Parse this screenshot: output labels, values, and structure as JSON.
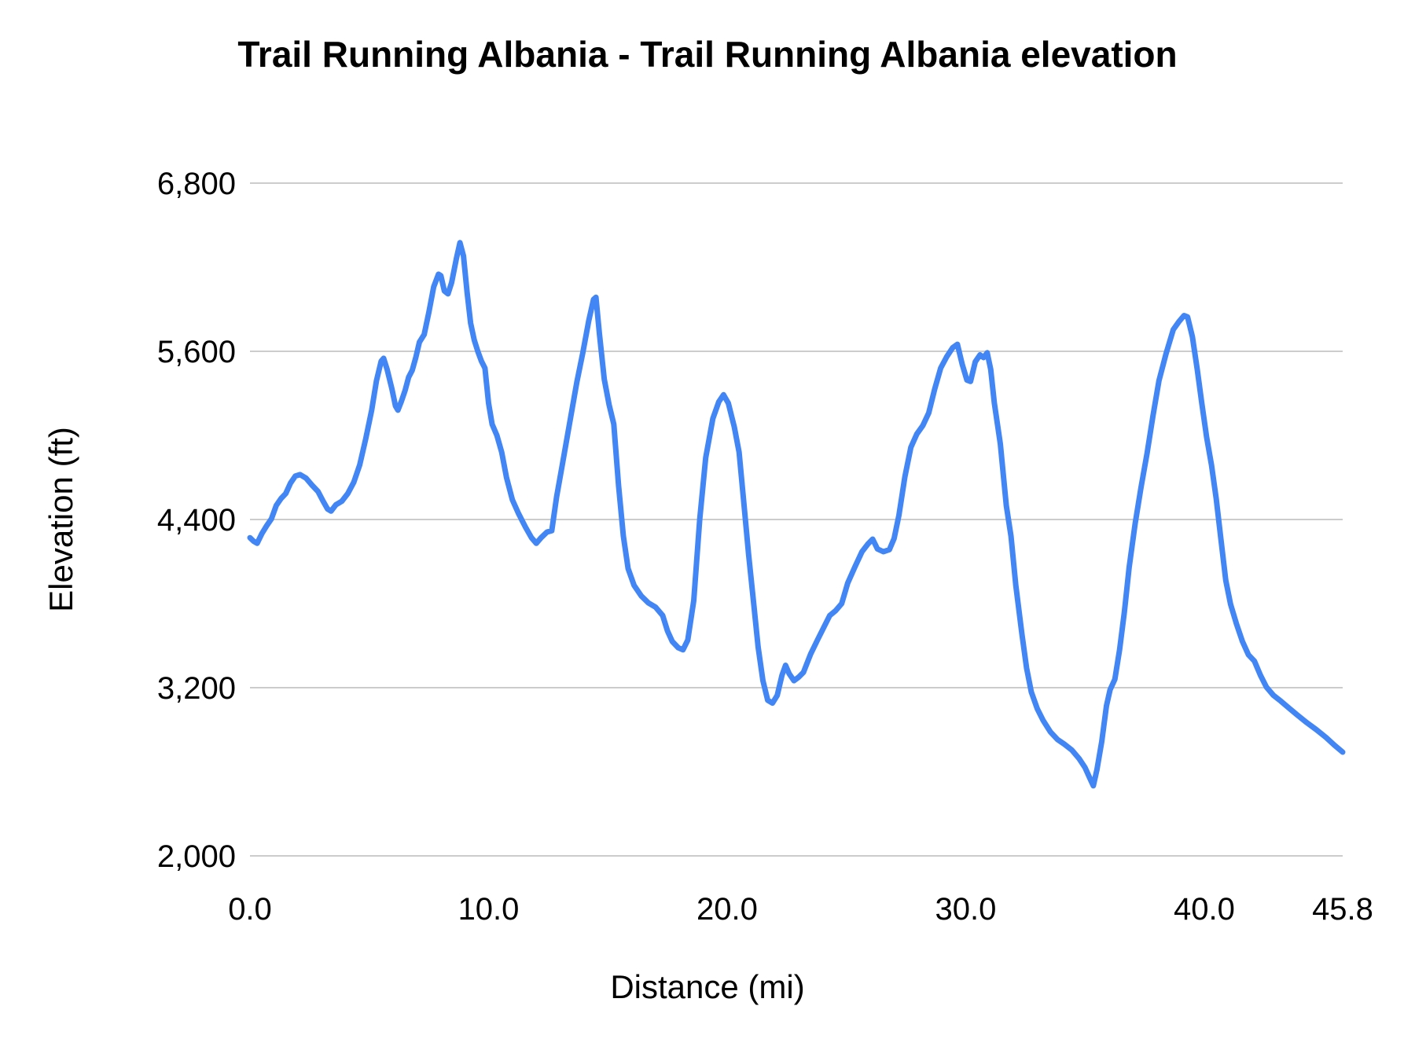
{
  "chart": {
    "line_color": "#4285f4",
    "gridline_color": "#cccccc",
    "text_color": "#000000",
    "background_color": "#ffffff"
  },
  "chart_data": {
    "type": "line",
    "title": "Trail Running Albania - Trail Running Albania elevation",
    "xlabel": "Distance (mi)",
    "ylabel": "Elevation (ft)",
    "xlim": [
      0,
      45.8
    ],
    "ylim": [
      2000,
      6800
    ],
    "grid": "horizontal",
    "legend": "none",
    "x_ticks": {
      "values": [
        0,
        10,
        20,
        30,
        40,
        45.8
      ],
      "labels": [
        "0.0",
        "10.0",
        "20.0",
        "30.0",
        "40.0",
        "45.8"
      ]
    },
    "y_ticks": {
      "values": [
        2000,
        3200,
        4400,
        5600,
        6800
      ],
      "labels": [
        "2,000",
        "3,200",
        "4,400",
        "5,600",
        "6,800"
      ]
    },
    "series": [
      {
        "name": "elevation",
        "points": [
          [
            0.0,
            4270
          ],
          [
            0.15,
            4245
          ],
          [
            0.3,
            4230
          ],
          [
            0.5,
            4300
          ],
          [
            0.7,
            4355
          ],
          [
            0.9,
            4405
          ],
          [
            1.1,
            4500
          ],
          [
            1.3,
            4550
          ],
          [
            1.5,
            4585
          ],
          [
            1.7,
            4660
          ],
          [
            1.9,
            4710
          ],
          [
            2.1,
            4720
          ],
          [
            2.35,
            4695
          ],
          [
            2.6,
            4645
          ],
          [
            2.85,
            4600
          ],
          [
            3.05,
            4535
          ],
          [
            3.25,
            4475
          ],
          [
            3.4,
            4460
          ],
          [
            3.6,
            4505
          ],
          [
            3.85,
            4530
          ],
          [
            4.1,
            4585
          ],
          [
            4.35,
            4665
          ],
          [
            4.6,
            4790
          ],
          [
            4.85,
            4975
          ],
          [
            5.1,
            5180
          ],
          [
            5.3,
            5390
          ],
          [
            5.5,
            5530
          ],
          [
            5.6,
            5550
          ],
          [
            5.75,
            5470
          ],
          [
            5.95,
            5330
          ],
          [
            6.1,
            5210
          ],
          [
            6.2,
            5180
          ],
          [
            6.35,
            5245
          ],
          [
            6.5,
            5320
          ],
          [
            6.65,
            5415
          ],
          [
            6.8,
            5465
          ],
          [
            6.95,
            5555
          ],
          [
            7.1,
            5665
          ],
          [
            7.3,
            5720
          ],
          [
            7.5,
            5880
          ],
          [
            7.7,
            6060
          ],
          [
            7.9,
            6150
          ],
          [
            8.0,
            6140
          ],
          [
            8.15,
            6030
          ],
          [
            8.3,
            6010
          ],
          [
            8.45,
            6090
          ],
          [
            8.65,
            6260
          ],
          [
            8.8,
            6375
          ],
          [
            8.95,
            6280
          ],
          [
            9.1,
            6020
          ],
          [
            9.25,
            5800
          ],
          [
            9.4,
            5680
          ],
          [
            9.55,
            5600
          ],
          [
            9.7,
            5530
          ],
          [
            9.85,
            5480
          ],
          [
            10.0,
            5230
          ],
          [
            10.15,
            5080
          ],
          [
            10.35,
            5000
          ],
          [
            10.55,
            4880
          ],
          [
            10.75,
            4700
          ],
          [
            11.0,
            4540
          ],
          [
            11.25,
            4445
          ],
          [
            11.55,
            4345
          ],
          [
            11.8,
            4270
          ],
          [
            12.0,
            4230
          ],
          [
            12.2,
            4270
          ],
          [
            12.45,
            4310
          ],
          [
            12.65,
            4320
          ],
          [
            12.85,
            4560
          ],
          [
            13.1,
            4800
          ],
          [
            13.4,
            5090
          ],
          [
            13.7,
            5380
          ],
          [
            13.95,
            5590
          ],
          [
            14.2,
            5820
          ],
          [
            14.4,
            5970
          ],
          [
            14.5,
            5985
          ],
          [
            14.65,
            5720
          ],
          [
            14.85,
            5400
          ],
          [
            15.05,
            5220
          ],
          [
            15.25,
            5080
          ],
          [
            15.45,
            4640
          ],
          [
            15.65,
            4280
          ],
          [
            15.85,
            4050
          ],
          [
            16.1,
            3930
          ],
          [
            16.4,
            3855
          ],
          [
            16.7,
            3805
          ],
          [
            17.0,
            3775
          ],
          [
            17.3,
            3715
          ],
          [
            17.5,
            3605
          ],
          [
            17.7,
            3530
          ],
          [
            17.95,
            3485
          ],
          [
            18.15,
            3470
          ],
          [
            18.35,
            3540
          ],
          [
            18.6,
            3820
          ],
          [
            18.85,
            4400
          ],
          [
            19.1,
            4840
          ],
          [
            19.4,
            5120
          ],
          [
            19.65,
            5240
          ],
          [
            19.85,
            5290
          ],
          [
            20.05,
            5230
          ],
          [
            20.3,
            5060
          ],
          [
            20.5,
            4880
          ],
          [
            20.7,
            4520
          ],
          [
            20.9,
            4150
          ],
          [
            21.1,
            3820
          ],
          [
            21.3,
            3490
          ],
          [
            21.5,
            3250
          ],
          [
            21.7,
            3110
          ],
          [
            21.9,
            3090
          ],
          [
            22.1,
            3145
          ],
          [
            22.3,
            3290
          ],
          [
            22.45,
            3360
          ],
          [
            22.6,
            3300
          ],
          [
            22.8,
            3250
          ],
          [
            23.0,
            3275
          ],
          [
            23.2,
            3310
          ],
          [
            23.5,
            3440
          ],
          [
            23.8,
            3545
          ],
          [
            24.05,
            3630
          ],
          [
            24.3,
            3715
          ],
          [
            24.55,
            3750
          ],
          [
            24.8,
            3800
          ],
          [
            25.05,
            3945
          ],
          [
            25.35,
            4060
          ],
          [
            25.65,
            4170
          ],
          [
            25.9,
            4225
          ],
          [
            26.1,
            4260
          ],
          [
            26.3,
            4190
          ],
          [
            26.55,
            4170
          ],
          [
            26.8,
            4185
          ],
          [
            27.0,
            4265
          ],
          [
            27.2,
            4430
          ],
          [
            27.45,
            4705
          ],
          [
            27.7,
            4915
          ],
          [
            27.95,
            5010
          ],
          [
            28.2,
            5070
          ],
          [
            28.45,
            5160
          ],
          [
            28.7,
            5330
          ],
          [
            28.95,
            5480
          ],
          [
            29.2,
            5560
          ],
          [
            29.45,
            5625
          ],
          [
            29.65,
            5650
          ],
          [
            29.85,
            5510
          ],
          [
            30.05,
            5395
          ],
          [
            30.2,
            5385
          ],
          [
            30.4,
            5525
          ],
          [
            30.6,
            5575
          ],
          [
            30.75,
            5555
          ],
          [
            30.9,
            5590
          ],
          [
            31.05,
            5470
          ],
          [
            31.2,
            5230
          ],
          [
            31.45,
            4940
          ],
          [
            31.7,
            4500
          ],
          [
            31.9,
            4280
          ],
          [
            32.1,
            3930
          ],
          [
            32.35,
            3590
          ],
          [
            32.55,
            3340
          ],
          [
            32.75,
            3170
          ],
          [
            33.0,
            3050
          ],
          [
            33.25,
            2965
          ],
          [
            33.55,
            2885
          ],
          [
            33.85,
            2830
          ],
          [
            34.15,
            2795
          ],
          [
            34.45,
            2755
          ],
          [
            34.75,
            2695
          ],
          [
            35.0,
            2630
          ],
          [
            35.2,
            2555
          ],
          [
            35.35,
            2500
          ],
          [
            35.5,
            2615
          ],
          [
            35.7,
            2815
          ],
          [
            35.9,
            3070
          ],
          [
            36.05,
            3185
          ],
          [
            36.25,
            3260
          ],
          [
            36.45,
            3470
          ],
          [
            36.65,
            3740
          ],
          [
            36.85,
            4060
          ],
          [
            37.1,
            4370
          ],
          [
            37.35,
            4630
          ],
          [
            37.6,
            4870
          ],
          [
            37.85,
            5140
          ],
          [
            38.1,
            5390
          ],
          [
            38.4,
            5585
          ],
          [
            38.7,
            5755
          ],
          [
            38.95,
            5815
          ],
          [
            39.15,
            5855
          ],
          [
            39.3,
            5845
          ],
          [
            39.5,
            5705
          ],
          [
            39.7,
            5475
          ],
          [
            39.9,
            5225
          ],
          [
            40.1,
            4985
          ],
          [
            40.3,
            4790
          ],
          [
            40.5,
            4550
          ],
          [
            40.7,
            4255
          ],
          [
            40.9,
            3965
          ],
          [
            41.1,
            3795
          ],
          [
            41.35,
            3655
          ],
          [
            41.6,
            3530
          ],
          [
            41.85,
            3435
          ],
          [
            42.1,
            3390
          ],
          [
            42.35,
            3290
          ],
          [
            42.6,
            3205
          ],
          [
            42.9,
            3145
          ],
          [
            43.2,
            3105
          ],
          [
            43.55,
            3055
          ],
          [
            43.9,
            3005
          ],
          [
            44.3,
            2950
          ],
          [
            44.7,
            2900
          ],
          [
            45.1,
            2845
          ],
          [
            45.45,
            2790
          ],
          [
            45.8,
            2740
          ]
        ]
      }
    ]
  }
}
